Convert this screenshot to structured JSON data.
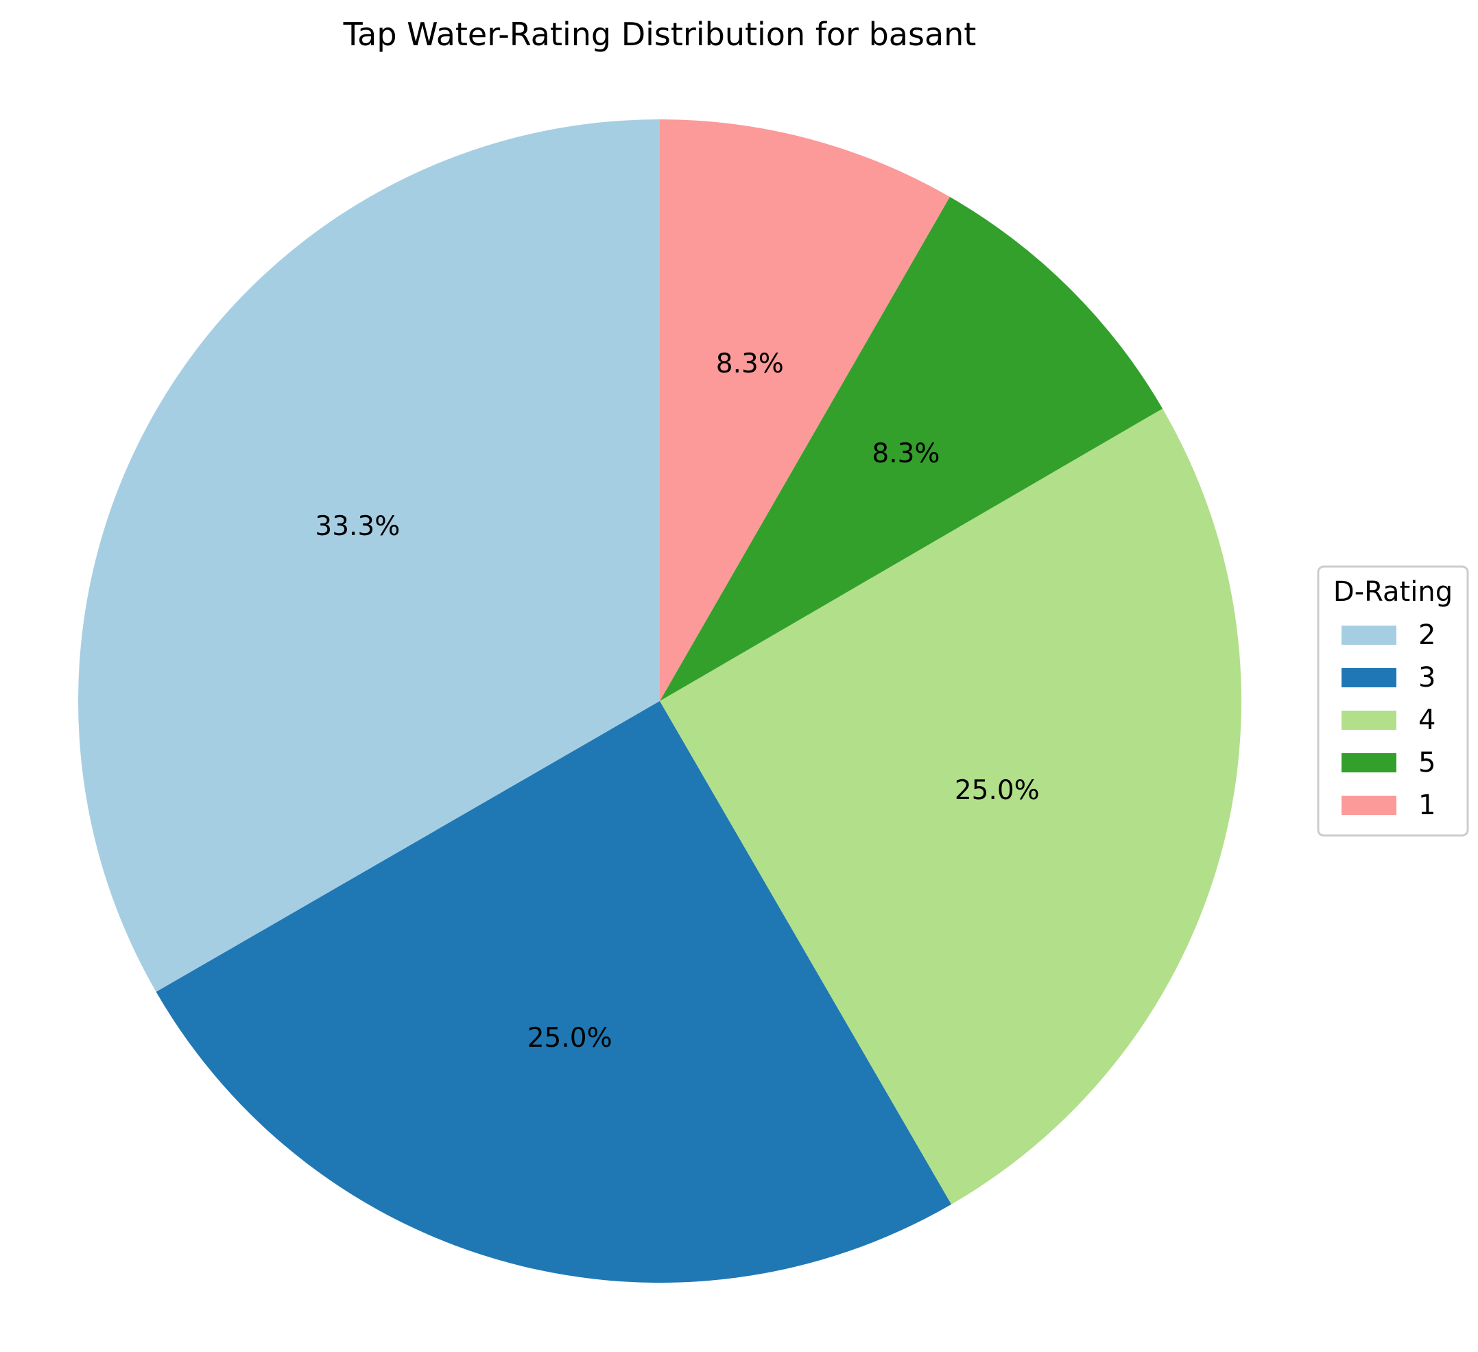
{
  "chart_data": {
    "type": "pie",
    "title": "Tap Water-Rating Distribution for basant",
    "legend_title": "D-Rating",
    "legend_position": "center-right",
    "start": "top",
    "direction": "counterclockwise",
    "categories": [
      "2",
      "3",
      "4",
      "5",
      "1"
    ],
    "values": [
      33.3,
      25.0,
      25.0,
      8.3,
      8.3
    ],
    "labels": [
      "33.3%",
      "25.0%",
      "25.0%",
      "8.3%",
      "8.3%"
    ],
    "colors": [
      "#a6cee3",
      "#1f78b4",
      "#b2df8a",
      "#33a02c",
      "#fb9a99"
    ]
  }
}
